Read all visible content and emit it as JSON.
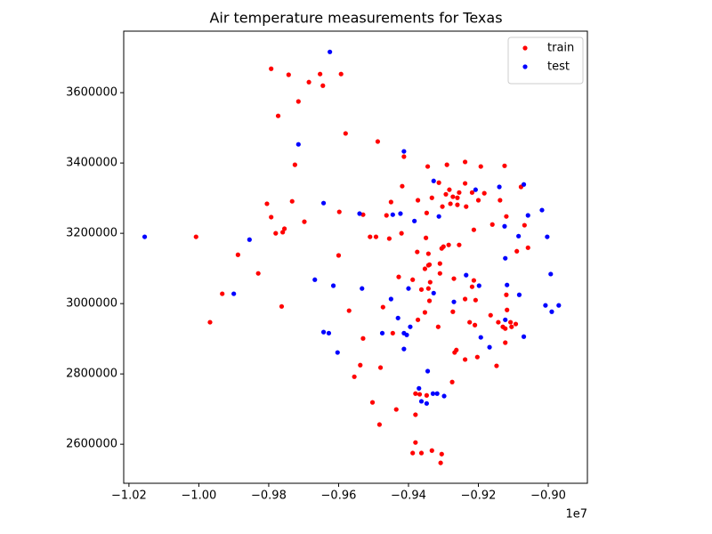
{
  "chart_data": {
    "type": "scatter",
    "title": "Air temperature measurements for Texas",
    "x_offset_label": "1e7",
    "xlim": [
      -1.0215,
      -0.8888
    ],
    "ylim": [
      2489000,
      3775000
    ],
    "xticks": [
      {
        "value": -1.02,
        "label": "−1.02"
      },
      {
        "value": -1.0,
        "label": "−1.00"
      },
      {
        "value": -0.98,
        "label": "−0.98"
      },
      {
        "value": -0.96,
        "label": "−0.96"
      },
      {
        "value": -0.94,
        "label": "−0.94"
      },
      {
        "value": -0.92,
        "label": "−0.92"
      },
      {
        "value": -0.9,
        "label": "−0.90"
      }
    ],
    "yticks": [
      2600000,
      2800000,
      3000000,
      3200000,
      3400000,
      3600000
    ],
    "legend": "upper right",
    "series": [
      {
        "name": "train",
        "color": "#ff0000",
        "x": [
          -0.9793,
          -0.9653,
          -0.9593,
          -0.9685,
          -0.9743,
          -0.9645,
          -0.9715,
          -0.9773,
          -0.958,
          -0.9488,
          -0.9725,
          -0.9413,
          -0.9345,
          -0.929,
          -0.9238,
          -0.9193,
          -0.9125,
          -0.9418,
          -0.9373,
          -0.9333,
          -0.9313,
          -0.9293,
          -0.9283,
          -0.9273,
          -0.926,
          -0.9255,
          -0.9238,
          -0.9218,
          -0.92,
          -0.9183,
          -0.9138,
          -0.9078,
          -0.926,
          -0.9235,
          -0.928,
          -0.9303,
          -0.9348,
          -0.945,
          -0.9733,
          -0.9805,
          -0.9598,
          -0.953,
          -0.9463,
          -0.9698,
          -0.9793,
          -0.978,
          -0.976,
          -0.9755,
          -0.9493,
          -0.9455,
          -0.942,
          -0.935,
          -0.93,
          -0.9285,
          -0.9255,
          -0.9213,
          -0.916,
          -0.912,
          -0.9068,
          -0.909,
          -0.9058,
          -1.0008,
          -0.9888,
          -0.983,
          -0.96,
          -0.951,
          -0.9375,
          -0.9343,
          -0.9305,
          -0.931,
          -0.9343,
          -0.9353,
          -0.934,
          -0.9388,
          -0.9428,
          -0.9338,
          -0.931,
          -0.927,
          -0.9218,
          -0.9213,
          -0.9208,
          -0.912,
          -0.9118,
          -0.9108,
          -0.9093,
          -0.9105,
          -0.9123,
          -0.913,
          -0.9165,
          -0.9143,
          -0.9238,
          -0.9225,
          -0.921,
          -0.9273,
          -0.934,
          -0.9343,
          -0.9363,
          -0.9353,
          -0.9373,
          -0.9315,
          -0.9473,
          -0.9968,
          -0.9933,
          -0.9763,
          -0.957,
          -0.9445,
          -0.9123,
          -0.9203,
          -0.9238,
          -0.9268,
          -0.9263,
          -0.9148,
          -0.953,
          -0.9538,
          -0.9555,
          -0.948,
          -0.9275,
          -0.9503,
          -0.9435,
          -0.9483,
          -0.938,
          -0.9368,
          -0.938,
          -0.9348,
          -0.938,
          -0.9333,
          -0.9305,
          -0.9363,
          -0.9388,
          -0.9308
        ],
        "values": [
          3668000,
          3653000,
          3653000,
          3630000,
          3651000,
          3620000,
          3575000,
          3534000,
          3484000,
          3461000,
          3395000,
          3418000,
          3390000,
          3395000,
          3403000,
          3390000,
          3392000,
          3334000,
          3294000,
          3301000,
          3344000,
          3311000,
          3324000,
          3304000,
          3301000,
          3316000,
          3342000,
          3316000,
          3294000,
          3314000,
          3294000,
          3332000,
          3281000,
          3276000,
          3284000,
          3276000,
          3258000,
          3289000,
          3291000,
          3284000,
          3261000,
          3253000,
          3251000,
          3233000,
          3246000,
          3200000,
          3203000,
          3213000,
          3190000,
          3185000,
          3200000,
          3187000,
          3162000,
          3167000,
          3167000,
          3210000,
          3225000,
          3248000,
          3223000,
          3149000,
          3159000,
          3190000,
          3139000,
          3086000,
          3137000,
          3190000,
          3147000,
          3142000,
          3157000,
          3114000,
          3109000,
          3099000,
          3111000,
          3068000,
          3076000,
          3061000,
          3086000,
          3071000,
          3048000,
          3066000,
          3010000,
          3025000,
          2982000,
          2947000,
          2942000,
          2934000,
          2929000,
          2934000,
          2967000,
          2947000,
          3013000,
          2947000,
          2939000,
          2977000,
          3008000,
          3043000,
          3040000,
          2975000,
          2954000,
          2934000,
          2990000,
          2947000,
          3028000,
          2992000,
          2980000,
          2916000,
          2889000,
          2848000,
          2841000,
          2861000,
          2868000,
          2823000,
          2901000,
          2825000,
          2792000,
          2818000,
          2777000,
          2719000,
          2699000,
          2656000,
          2684000,
          2742000,
          2744000,
          2739000,
          2605000,
          2582000,
          2572000,
          2575000,
          2575000,
          2547000
        ]
      },
      {
        "name": "test",
        "color": "#0000ff",
        "x": [
          -1.0155,
          -0.9625,
          -0.9715,
          -0.9413,
          -0.9328,
          -0.9208,
          -0.914,
          -0.907,
          -0.9018,
          -0.9058,
          -0.9125,
          -0.9643,
          -0.954,
          -0.9445,
          -0.9423,
          -0.9383,
          -0.9313,
          -0.9855,
          -0.9085,
          -0.9003,
          -0.9668,
          -0.9615,
          -0.9533,
          -0.94,
          -0.9328,
          -0.9235,
          -0.9198,
          -0.9123,
          -0.9118,
          -0.9083,
          -0.8993,
          -0.9008,
          -0.899,
          -0.897,
          -0.927,
          -0.945,
          -0.943,
          -0.9395,
          -0.9413,
          -0.9643,
          -0.9628,
          -0.9475,
          -0.9405,
          -0.9193,
          -0.9168,
          -0.907,
          -0.9603,
          -0.9413,
          -0.9345,
          -0.937,
          -0.9363,
          -0.9348,
          -0.933,
          -0.9318,
          -0.9298,
          -0.99,
          -0.9123
        ],
        "values": [
          3190000,
          3716000,
          3453000,
          3433000,
          3349000,
          3324000,
          3332000,
          3339000,
          3266000,
          3251000,
          3220000,
          3286000,
          3256000,
          3253000,
          3256000,
          3235000,
          3248000,
          3182000,
          3192000,
          3190000,
          3068000,
          3051000,
          3043000,
          3043000,
          3030000,
          3081000,
          3051000,
          3129000,
          3053000,
          3025000,
          3084000,
          2995000,
          2977000,
          2995000,
          3005000,
          3013000,
          2959000,
          2934000,
          2916000,
          2919000,
          2916000,
          2916000,
          2911000,
          2904000,
          2876000,
          2906000,
          2861000,
          2871000,
          2808000,
          2759000,
          2722000,
          2716000,
          2744000,
          2744000,
          2737000,
          3028000,
          2954000
        ]
      }
    ]
  }
}
